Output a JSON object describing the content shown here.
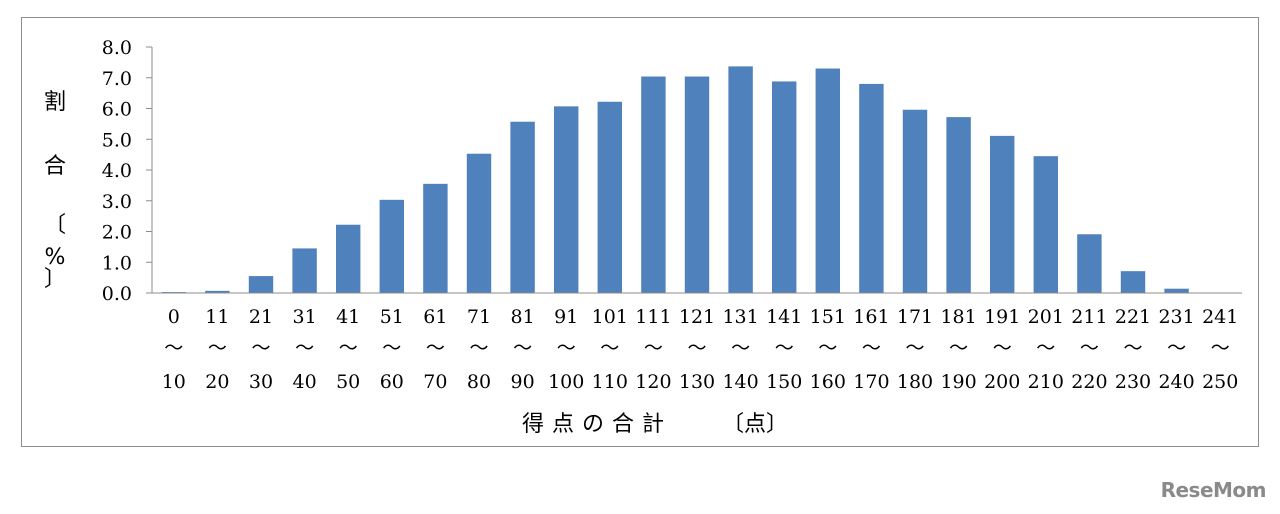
{
  "chart_data": {
    "type": "bar",
    "categories_from": [
      "0",
      "11",
      "21",
      "31",
      "41",
      "51",
      "61",
      "71",
      "81",
      "91",
      "101",
      "111",
      "121",
      "131",
      "141",
      "151",
      "161",
      "171",
      "181",
      "191",
      "201",
      "211",
      "221",
      "231",
      "241"
    ],
    "categories_sep": "～",
    "categories_to": [
      "10",
      "20",
      "30",
      "40",
      "50",
      "60",
      "70",
      "80",
      "90",
      "100",
      "110",
      "120",
      "130",
      "140",
      "150",
      "160",
      "170",
      "180",
      "190",
      "200",
      "210",
      "220",
      "230",
      "240",
      "250"
    ],
    "values": [
      0.03,
      0.07,
      0.55,
      1.45,
      2.22,
      3.03,
      3.55,
      4.53,
      5.57,
      6.07,
      6.22,
      7.04,
      7.04,
      7.37,
      6.88,
      7.3,
      6.8,
      5.96,
      5.72,
      5.11,
      4.45,
      1.91,
      0.71,
      0.14,
      0.0
    ],
    "ylim": [
      0,
      8
    ],
    "yticks": [
      "0.0",
      "1.0",
      "2.0",
      "3.0",
      "4.0",
      "5.0",
      "6.0",
      "7.0",
      "8.0"
    ],
    "ylabel_chars": [
      "割",
      "合",
      "〔",
      "%",
      "〕"
    ],
    "xlabel_main": "得点の合計",
    "xlabel_unit": "〔点〕",
    "bar_color": "#4f81bd",
    "grid": false
  },
  "watermark": "ReseMom"
}
